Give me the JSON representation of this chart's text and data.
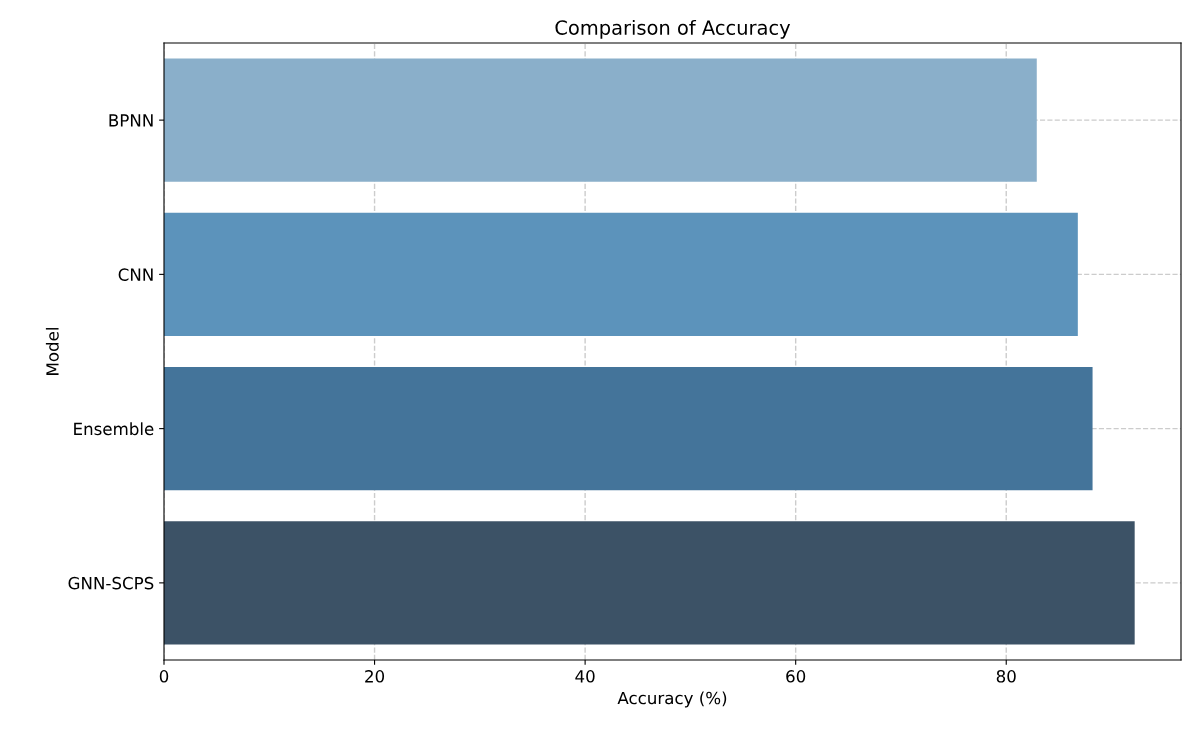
{
  "chart_data": {
    "type": "bar",
    "orientation": "horizontal",
    "title": "Comparison of Accuracy",
    "xlabel": "Accuracy (%)",
    "ylabel": "Model",
    "categories": [
      "BPNN",
      "CNN",
      "Ensemble",
      "GNN-SCPS"
    ],
    "values": [
      82.9,
      86.8,
      88.2,
      92.2
    ],
    "colors": [
      "#8aafca",
      "#5c93bb",
      "#44749a",
      "#3c5266"
    ],
    "xlim": [
      0,
      96.6
    ],
    "xticks": [
      0,
      20,
      40,
      60,
      80
    ],
    "grid": true
  }
}
